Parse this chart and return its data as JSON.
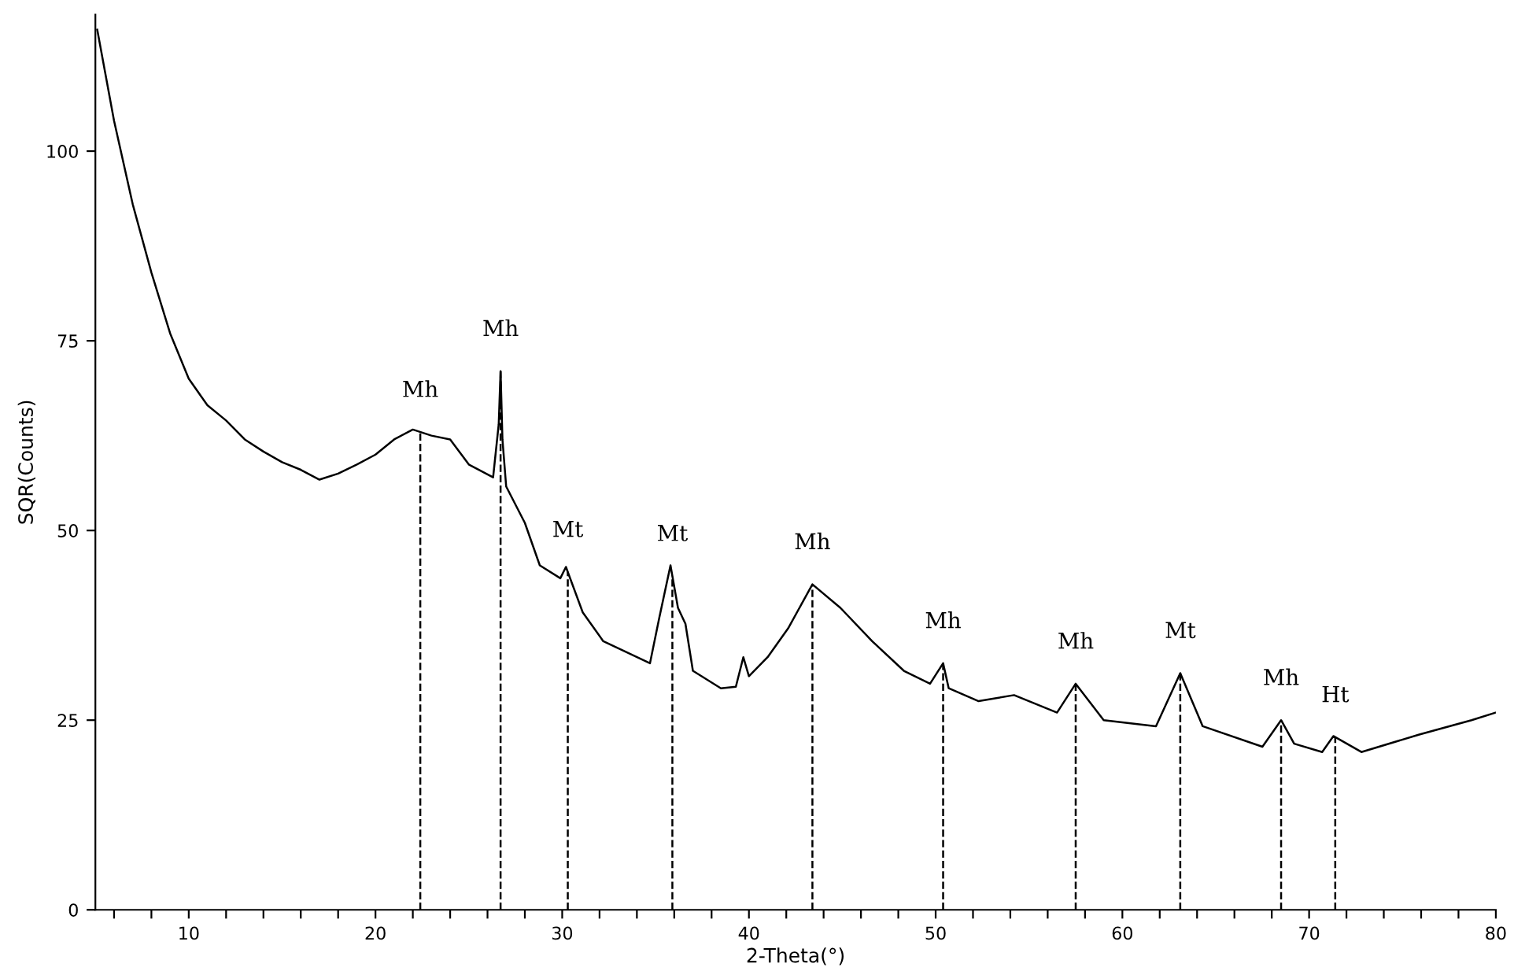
{
  "chart_data": {
    "type": "line",
    "xlabel": "2-Theta(°)",
    "ylabel": "SQR(Counts)",
    "xlim": [
      5,
      80
    ],
    "ylim": [
      0,
      118
    ],
    "xticks": [
      {
        "value": 6,
        "label": null
      },
      {
        "value": 8,
        "label": null
      },
      10,
      {
        "value": 12,
        "label": null
      },
      {
        "value": 14,
        "label": null
      },
      {
        "value": 16,
        "label": null
      },
      {
        "value": 18,
        "label": null
      },
      20,
      {
        "value": 22,
        "label": null
      },
      {
        "value": 24,
        "label": null
      },
      {
        "value": 26,
        "label": null
      },
      {
        "value": 28,
        "label": null
      },
      30,
      {
        "value": 32,
        "label": null
      },
      {
        "value": 34,
        "label": null
      },
      {
        "value": 36,
        "label": null
      },
      {
        "value": 38,
        "label": null
      },
      40,
      {
        "value": 42,
        "label": null
      },
      {
        "value": 44,
        "label": null
      },
      {
        "value": 46,
        "label": null
      },
      {
        "value": 48,
        "label": null
      },
      50,
      {
        "value": 52,
        "label": null
      },
      {
        "value": 54,
        "label": null
      },
      {
        "value": 56,
        "label": null
      },
      {
        "value": 58,
        "label": null
      },
      60,
      {
        "value": 62,
        "label": null
      },
      {
        "value": 64,
        "label": null
      },
      {
        "value": 66,
        "label": null
      },
      {
        "value": 68,
        "label": null
      },
      70,
      {
        "value": 72,
        "label": null
      },
      {
        "value": 74,
        "label": null
      },
      {
        "value": 76,
        "label": null
      },
      {
        "value": 78,
        "label": null
      },
      80
    ],
    "yticks": [
      0,
      25,
      50,
      75,
      100
    ],
    "grid": false,
    "legend": false,
    "marker": "none",
    "line_style": "solid",
    "series": [
      {
        "color": "#000000",
        "x": [
          5.1,
          6,
          7,
          8,
          9,
          10,
          11,
          12,
          13,
          14,
          15,
          16,
          17,
          18,
          19,
          20,
          21,
          22,
          23,
          24,
          25,
          26.3,
          26.6,
          26.7,
          26.8,
          27.0,
          28.0,
          28.8,
          29.9,
          30.2,
          31.1,
          32.2,
          34.7,
          35.2,
          35.8,
          36.2,
          36.6,
          37.0,
          38.5,
          39.3,
          39.7,
          40.0,
          41.0,
          42.1,
          43.4,
          44.9,
          46.6,
          48.3,
          49.7,
          50.4,
          50.7,
          52.3,
          54.2,
          56.5,
          57.5,
          59.0,
          61.8,
          63.1,
          64.3,
          67.5,
          68.5,
          69.2,
          70.7,
          71.3,
          72.8,
          75.9,
          78.7,
          80
        ],
        "values": [
          116,
          104,
          93,
          84,
          76,
          70,
          66.5,
          64.5,
          62,
          60.4,
          59,
          58,
          56.7,
          57.5,
          58.7,
          60,
          62,
          63.3,
          62.5,
          62,
          58.7,
          57,
          64,
          71,
          62,
          55.8,
          51,
          45.4,
          43.7,
          45.2,
          39.2,
          35.4,
          32.5,
          38.5,
          45.4,
          39.8,
          37.7,
          31.5,
          29.2,
          29.4,
          33.3,
          30.8,
          33.3,
          37.1,
          42.9,
          39.8,
          35.4,
          31.5,
          29.8,
          32.5,
          29.2,
          27.5,
          28.3,
          26,
          29.8,
          25,
          24.2,
          31.2,
          24.2,
          21.5,
          25,
          21.9,
          20.8,
          22.9,
          20.8,
          23.1,
          25,
          26
        ]
      }
    ],
    "ref_lines": [
      {
        "axis": "x",
        "value": 22.4,
        "label": "Mh",
        "line_style": "dashed",
        "color": "#000000"
      },
      {
        "axis": "x",
        "value": 26.7,
        "label": "Mh",
        "line_style": "dashed",
        "color": "#000000"
      },
      {
        "axis": "x",
        "value": 30.3,
        "label": "Mt",
        "line_style": "dashed",
        "color": "#000000"
      },
      {
        "axis": "x",
        "value": 35.9,
        "label": "Mt",
        "line_style": "dashed",
        "color": "#000000"
      },
      {
        "axis": "x",
        "value": 43.4,
        "label": "Mh",
        "line_style": "dashed",
        "color": "#000000"
      },
      {
        "axis": "x",
        "value": 50.4,
        "label": "Mh",
        "line_style": "dashed",
        "color": "#000000"
      },
      {
        "axis": "x",
        "value": 57.5,
        "label": "Mh",
        "line_style": "dashed",
        "color": "#000000"
      },
      {
        "axis": "x",
        "value": 63.1,
        "label": "Mt",
        "line_style": "dashed",
        "color": "#000000"
      },
      {
        "axis": "x",
        "value": 68.5,
        "label": "Mh",
        "line_style": "dashed",
        "color": "#000000"
      },
      {
        "axis": "x",
        "value": 71.4,
        "label": "Ht",
        "line_style": "dashed",
        "color": "#000000"
      }
    ]
  }
}
